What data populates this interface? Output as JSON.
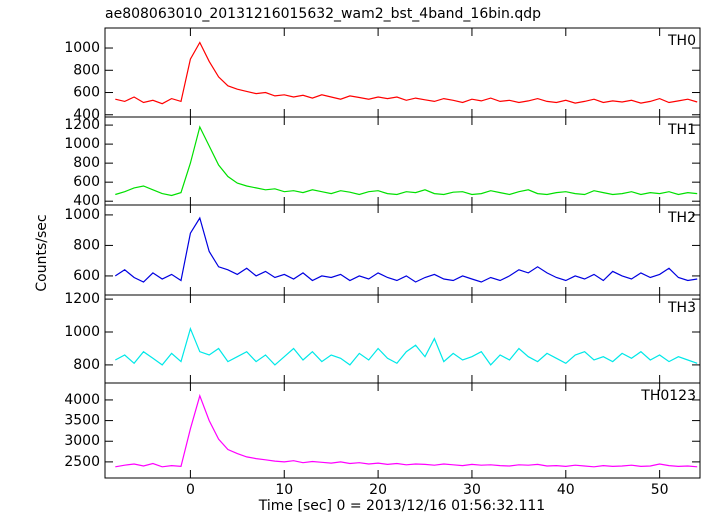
{
  "chart_data": [
    {
      "type": "line",
      "title": "ae808063010_20131216015632_wam2_bst_4band_16bin.qdp",
      "label": "TH0",
      "color": "#ff0000",
      "x": [
        -8,
        -7,
        -6,
        -5,
        -4,
        -3,
        -2,
        -1,
        0,
        1,
        2,
        3,
        4,
        5,
        6,
        7,
        8,
        9,
        10,
        11,
        12,
        13,
        14,
        15,
        16,
        17,
        18,
        19,
        20,
        21,
        22,
        23,
        24,
        25,
        26,
        27,
        28,
        29,
        30,
        31,
        32,
        33,
        34,
        35,
        36,
        37,
        38,
        39,
        40,
        41,
        42,
        43,
        44,
        45,
        46,
        47,
        48,
        49,
        50,
        51,
        52,
        53,
        54
      ],
      "values": [
        540,
        520,
        560,
        510,
        530,
        500,
        545,
        520,
        900,
        1050,
        880,
        740,
        660,
        630,
        610,
        590,
        600,
        570,
        580,
        560,
        575,
        550,
        580,
        560,
        540,
        570,
        555,
        540,
        560,
        545,
        560,
        530,
        550,
        535,
        520,
        545,
        530,
        510,
        540,
        525,
        550,
        520,
        530,
        510,
        525,
        545,
        520,
        510,
        530,
        505,
        520,
        540,
        510,
        525,
        515,
        530,
        505,
        520,
        545,
        510,
        525,
        540,
        515
      ],
      "xlim": [
        -9.1,
        54.3
      ],
      "xticks": [
        0,
        10,
        20,
        30,
        40,
        50
      ],
      "ylim": [
        380,
        1180
      ],
      "yticks": [
        400,
        600,
        800,
        1000
      ]
    },
    {
      "type": "line",
      "label": "TH1",
      "color": "#00e000",
      "x": [
        -8,
        -7,
        -6,
        -5,
        -4,
        -3,
        -2,
        -1,
        0,
        1,
        2,
        3,
        4,
        5,
        6,
        7,
        8,
        9,
        10,
        11,
        12,
        13,
        14,
        15,
        16,
        17,
        18,
        19,
        20,
        21,
        22,
        23,
        24,
        25,
        26,
        27,
        28,
        29,
        30,
        31,
        32,
        33,
        34,
        35,
        36,
        37,
        38,
        39,
        40,
        41,
        42,
        43,
        44,
        45,
        46,
        47,
        48,
        49,
        50,
        51,
        52,
        53,
        54
      ],
      "values": [
        470,
        500,
        540,
        560,
        520,
        480,
        460,
        490,
        800,
        1180,
        980,
        780,
        660,
        590,
        560,
        540,
        520,
        530,
        500,
        510,
        490,
        520,
        500,
        480,
        510,
        495,
        470,
        500,
        510,
        480,
        470,
        500,
        490,
        520,
        480,
        470,
        495,
        500,
        470,
        480,
        510,
        490,
        470,
        500,
        520,
        480,
        470,
        490,
        500,
        480,
        470,
        510,
        490,
        470,
        480,
        500,
        470,
        490,
        480,
        500,
        470,
        490,
        480
      ],
      "xlim": [
        -9.1,
        54.3
      ],
      "xticks": [
        0,
        10,
        20,
        30,
        40,
        50
      ],
      "ylim": [
        360,
        1285
      ],
      "yticks": [
        400,
        600,
        800,
        1000,
        1200
      ]
    },
    {
      "type": "line",
      "label": "TH2",
      "color": "#0000e0",
      "y_label": "Counts/sec",
      "x": [
        -8,
        -7,
        -6,
        -5,
        -4,
        -3,
        -2,
        -1,
        0,
        1,
        2,
        3,
        4,
        5,
        6,
        7,
        8,
        9,
        10,
        11,
        12,
        13,
        14,
        15,
        16,
        17,
        18,
        19,
        20,
        21,
        22,
        23,
        24,
        25,
        26,
        27,
        28,
        29,
        30,
        31,
        32,
        33,
        34,
        35,
        36,
        37,
        38,
        39,
        40,
        41,
        42,
        43,
        44,
        45,
        46,
        47,
        48,
        49,
        50,
        51,
        52,
        53,
        54
      ],
      "values": [
        600,
        640,
        590,
        560,
        620,
        580,
        610,
        570,
        880,
        980,
        760,
        660,
        640,
        610,
        650,
        600,
        630,
        590,
        610,
        580,
        620,
        570,
        600,
        590,
        610,
        570,
        600,
        580,
        620,
        590,
        570,
        600,
        560,
        590,
        610,
        580,
        570,
        600,
        580,
        560,
        590,
        570,
        600,
        640,
        620,
        660,
        620,
        590,
        570,
        600,
        580,
        610,
        570,
        630,
        600,
        580,
        620,
        590,
        610,
        650,
        590,
        570,
        580
      ],
      "xlim": [
        -9.1,
        54.3
      ],
      "xticks": [
        0,
        10,
        20,
        30,
        40,
        50
      ],
      "ylim": [
        475,
        1065
      ],
      "yticks": [
        600,
        800,
        1000
      ]
    },
    {
      "type": "line",
      "label": "TH3",
      "color": "#00e8e8",
      "x": [
        -8,
        -7,
        -6,
        -5,
        -4,
        -3,
        -2,
        -1,
        0,
        1,
        2,
        3,
        4,
        5,
        6,
        7,
        8,
        9,
        10,
        11,
        12,
        13,
        14,
        15,
        16,
        17,
        18,
        19,
        20,
        21,
        22,
        23,
        24,
        25,
        26,
        27,
        28,
        29,
        30,
        31,
        32,
        33,
        34,
        35,
        36,
        37,
        38,
        39,
        40,
        41,
        42,
        43,
        44,
        45,
        46,
        47,
        48,
        49,
        50,
        51,
        52,
        53,
        54
      ],
      "values": [
        830,
        860,
        810,
        880,
        840,
        800,
        870,
        820,
        1020,
        880,
        860,
        900,
        820,
        850,
        880,
        820,
        860,
        800,
        850,
        900,
        830,
        880,
        820,
        860,
        840,
        800,
        870,
        830,
        900,
        840,
        810,
        880,
        920,
        850,
        960,
        820,
        870,
        830,
        850,
        880,
        800,
        860,
        830,
        900,
        850,
        820,
        870,
        840,
        810,
        860,
        880,
        830,
        850,
        820,
        870,
        840,
        880,
        830,
        860,
        820,
        850,
        830,
        810
      ],
      "xlim": [
        -9.1,
        54.3
      ],
      "xticks": [
        0,
        10,
        20,
        30,
        40,
        50
      ],
      "ylim": [
        690,
        1225
      ],
      "yticks": [
        800,
        1000,
        1200
      ]
    },
    {
      "type": "line",
      "label": "TH0123",
      "color": "#ff00ff",
      "x_label": "Time [sec] 0 = 2013/12/16 01:56:32.111",
      "x": [
        -8,
        -7,
        -6,
        -5,
        -4,
        -3,
        -2,
        -1,
        0,
        1,
        2,
        3,
        4,
        5,
        6,
        7,
        8,
        9,
        10,
        11,
        12,
        13,
        14,
        15,
        16,
        17,
        18,
        19,
        20,
        21,
        22,
        23,
        24,
        25,
        26,
        27,
        28,
        29,
        30,
        31,
        32,
        33,
        34,
        35,
        36,
        37,
        38,
        39,
        40,
        41,
        42,
        43,
        44,
        45,
        46,
        47,
        48,
        49,
        50,
        51,
        52,
        53,
        54
      ],
      "values": [
        2380,
        2420,
        2450,
        2400,
        2460,
        2380,
        2410,
        2390,
        3300,
        4100,
        3500,
        3050,
        2800,
        2700,
        2620,
        2580,
        2550,
        2520,
        2500,
        2530,
        2480,
        2510,
        2490,
        2470,
        2500,
        2460,
        2480,
        2450,
        2470,
        2440,
        2460,
        2430,
        2450,
        2440,
        2420,
        2450,
        2430,
        2410,
        2440,
        2420,
        2430,
        2410,
        2400,
        2430,
        2420,
        2440,
        2400,
        2410,
        2390,
        2420,
        2400,
        2380,
        2410,
        2390,
        2400,
        2420,
        2390,
        2400,
        2450,
        2410,
        2390,
        2400,
        2380
      ],
      "xlim": [
        -9.1,
        54.3
      ],
      "xticks": [
        0,
        10,
        20,
        30,
        40,
        50
      ],
      "ylim": [
        2110,
        4410
      ],
      "yticks": [
        2500,
        3000,
        3500,
        4000
      ]
    }
  ]
}
